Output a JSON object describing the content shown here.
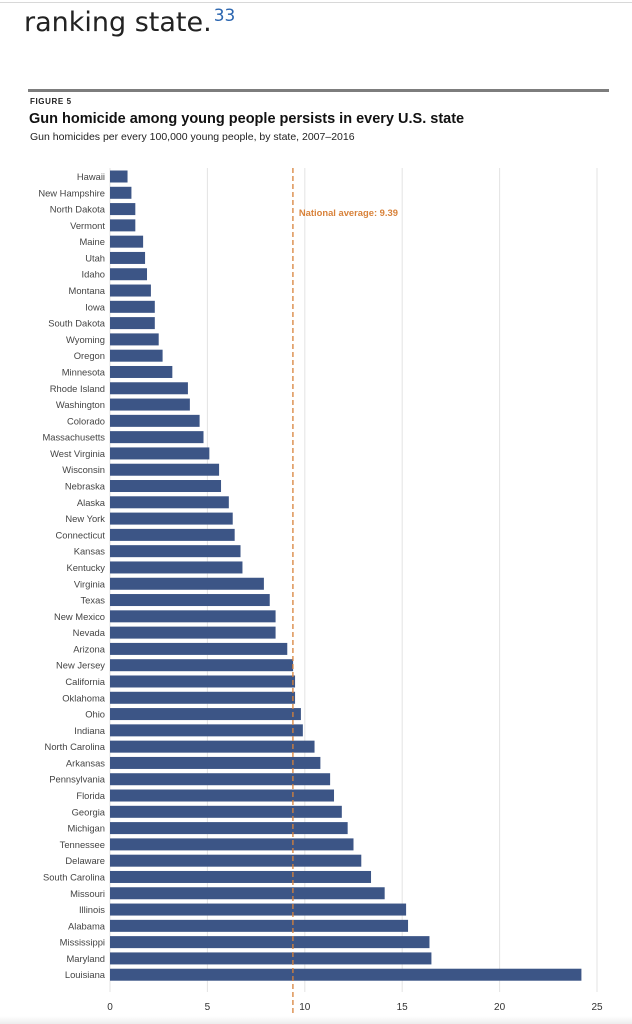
{
  "intro": {
    "text": "ranking state.",
    "footnote": "33"
  },
  "figure": {
    "label": "FIGURE 5",
    "title": "Gun homicide among young people persists in every U.S. state",
    "subtitle": "Gun homicides per every 100,000 young people, by state, 2007–2016"
  },
  "chart_data": {
    "type": "bar",
    "orientation": "horizontal",
    "title": "Gun homicide among young people persists in every U.S. state",
    "subtitle": "Gun homicides per every 100,000 young people, by state, 2007–2016",
    "xlabel": "",
    "ylabel": "",
    "xlim": [
      0,
      25
    ],
    "xticks": [
      0,
      5,
      10,
      15,
      20,
      25
    ],
    "grid": "vertical",
    "bar_color": "#3c5586",
    "reference_line": {
      "value": 9.39,
      "label": "National average: 9.39",
      "color": "#d8823a"
    },
    "categories": [
      "Hawaii",
      "New Hampshire",
      "North Dakota",
      "Vermont",
      "Maine",
      "Utah",
      "Idaho",
      "Montana",
      "Iowa",
      "South Dakota",
      "Wyoming",
      "Oregon",
      "Minnesota",
      "Rhode Island",
      "Washington",
      "Colorado",
      "Massachusetts",
      "West Virginia",
      "Wisconsin",
      "Nebraska",
      "Alaska",
      "New York",
      "Connecticut",
      "Kansas",
      "Kentucky",
      "Virginia",
      "Texas",
      "New Mexico",
      "Nevada",
      "Arizona",
      "New Jersey",
      "California",
      "Oklahoma",
      "Ohio",
      "Indiana",
      "North Carolina",
      "Arkansas",
      "Pennsylvania",
      "Florida",
      "Georgia",
      "Michigan",
      "Tennessee",
      "Delaware",
      "South Carolina",
      "Missouri",
      "Illinois",
      "Alabama",
      "Mississippi",
      "Maryland",
      "Louisiana"
    ],
    "values": [
      0.9,
      1.1,
      1.3,
      1.3,
      1.7,
      1.8,
      1.9,
      2.1,
      2.3,
      2.3,
      2.5,
      2.7,
      3.2,
      4.0,
      4.1,
      4.6,
      4.8,
      5.1,
      5.6,
      5.7,
      6.1,
      6.3,
      6.4,
      6.7,
      6.8,
      7.9,
      8.2,
      8.5,
      8.5,
      9.1,
      9.4,
      9.5,
      9.5,
      9.8,
      9.9,
      10.5,
      10.8,
      11.3,
      11.5,
      11.9,
      12.2,
      12.5,
      12.9,
      13.4,
      14.1,
      15.2,
      15.3,
      16.4,
      16.5,
      24.2
    ]
  }
}
